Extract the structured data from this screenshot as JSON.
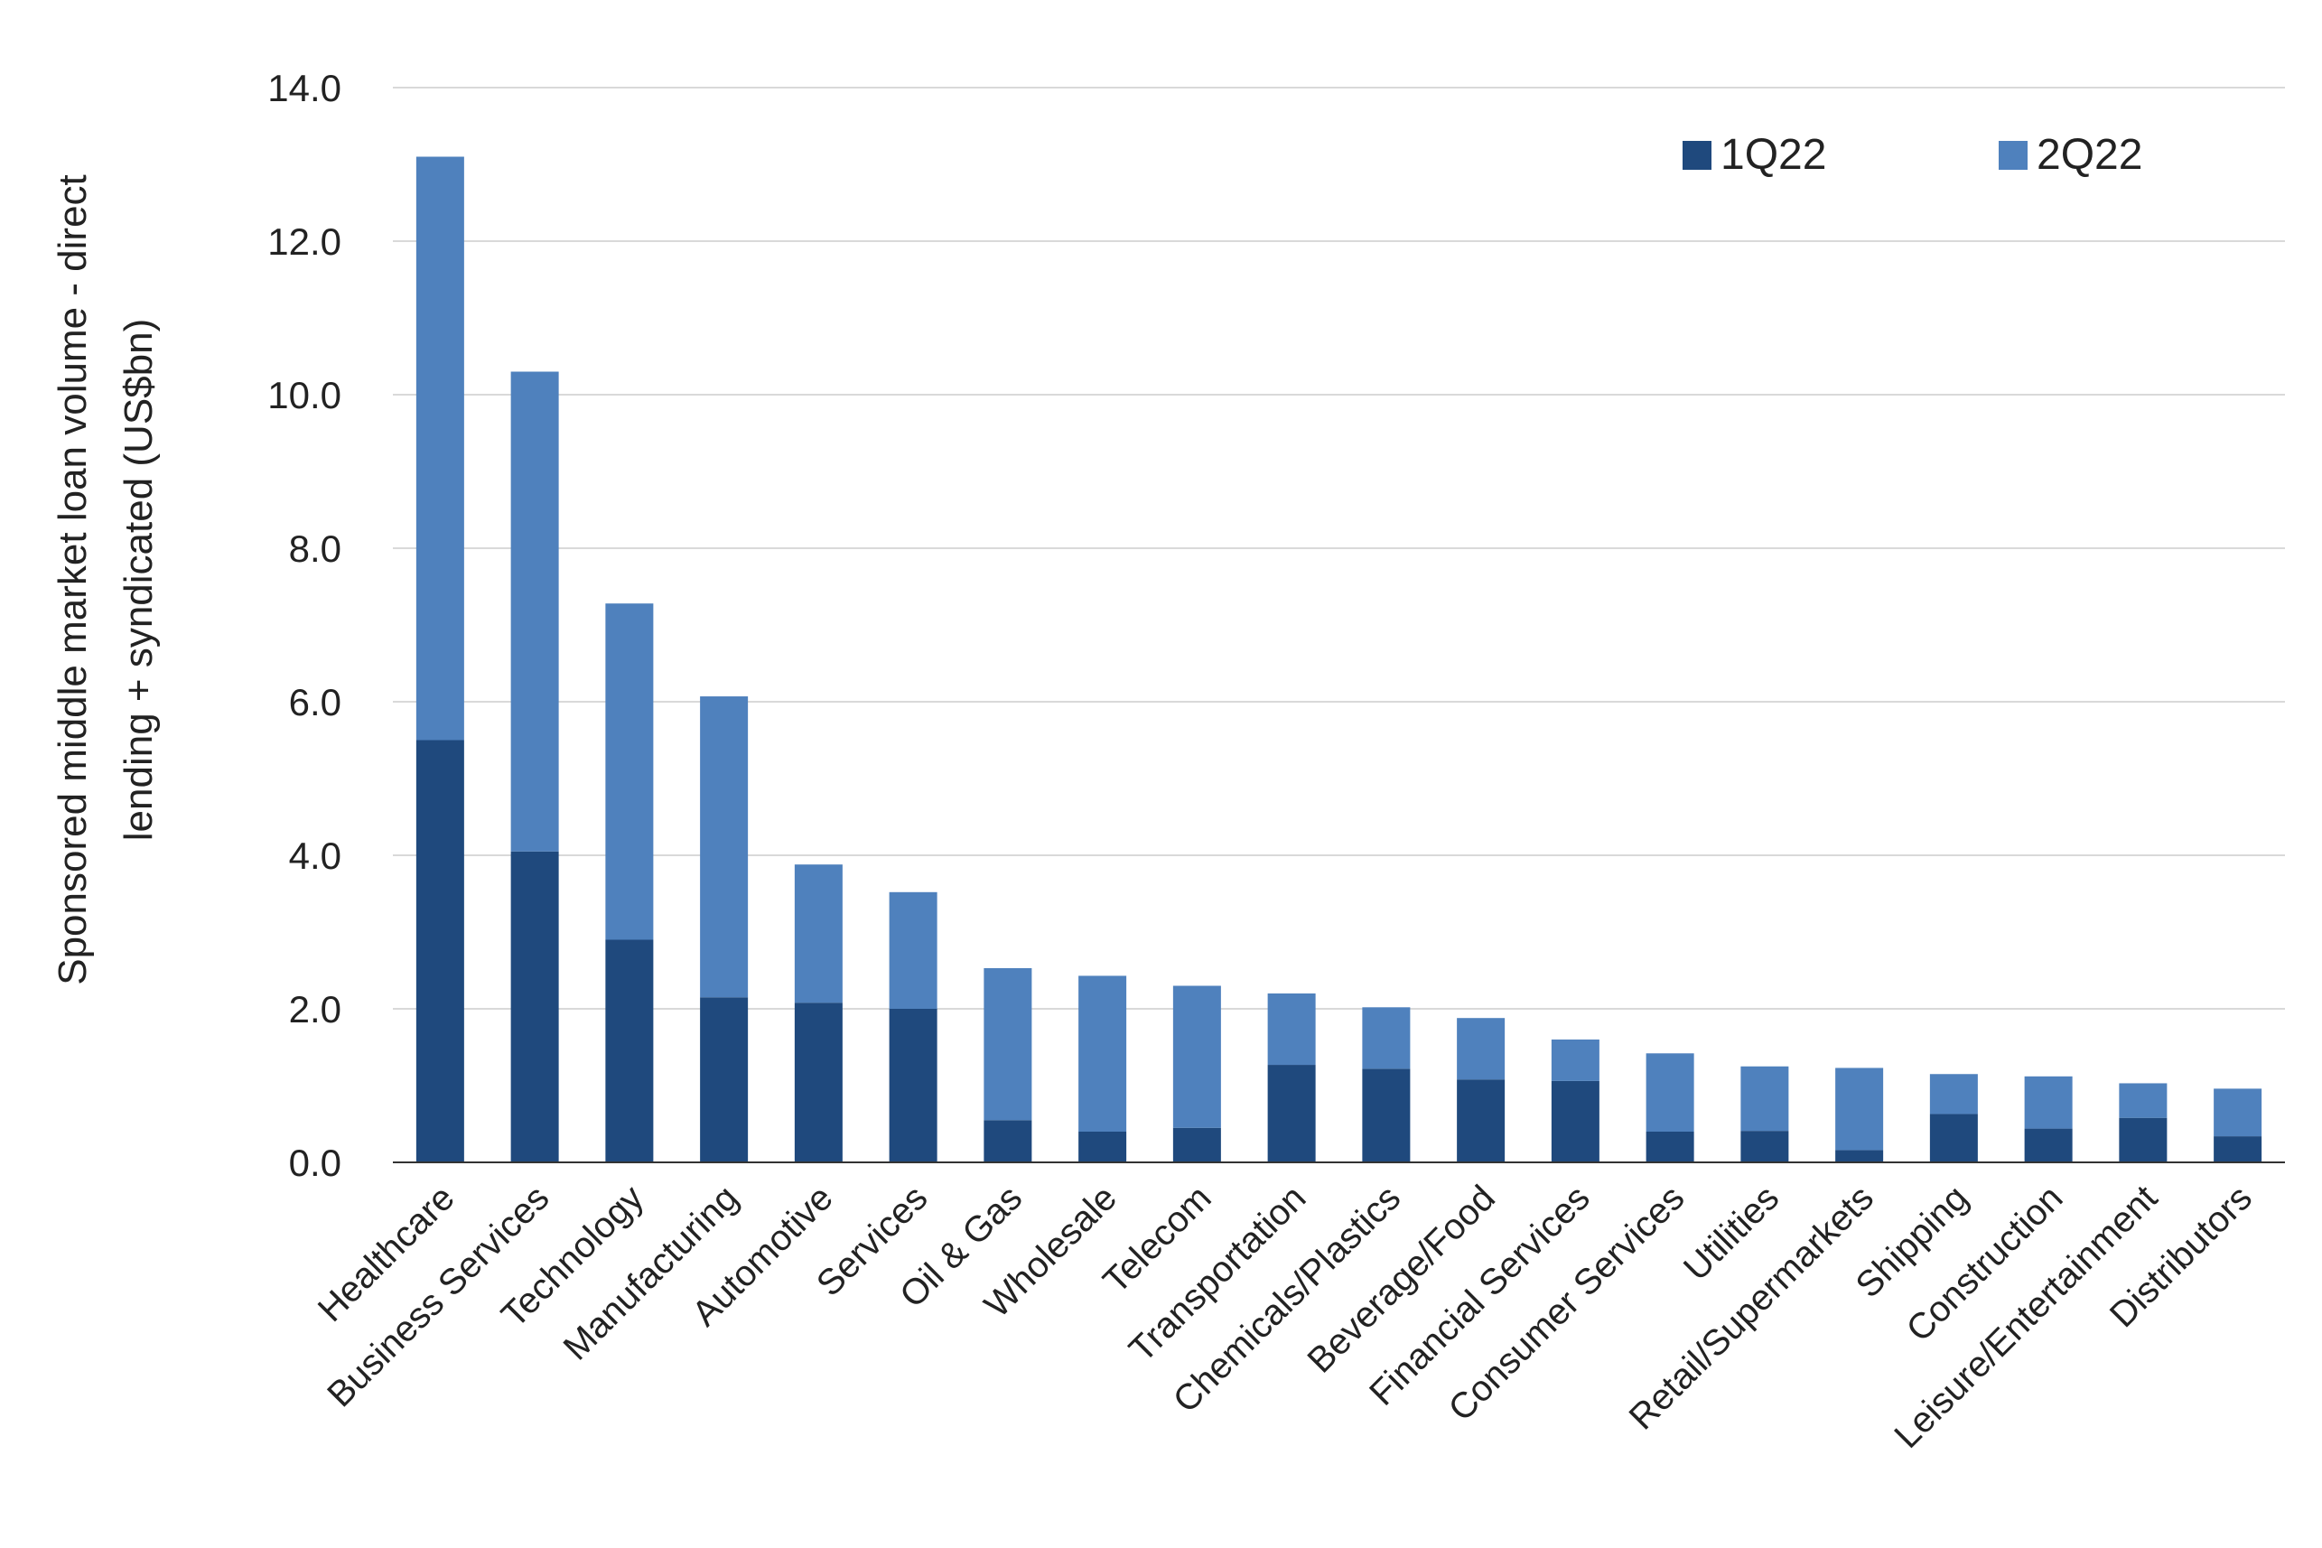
{
  "chart_data": {
    "type": "bar",
    "stacked": true,
    "title": "",
    "ylabel_lines": [
      "Sponsored middle market loan volume - direct",
      "lending + syndicated (US$bn)"
    ],
    "ylim": [
      0,
      14
    ],
    "yticks": [
      "0.0",
      "2.0",
      "4.0",
      "6.0",
      "8.0",
      "10.0",
      "12.0",
      "14.0"
    ],
    "ytick_values": [
      0,
      2,
      4,
      6,
      8,
      10,
      12,
      14
    ],
    "grid": true,
    "legend_position": "top-right",
    "categories": [
      "Healthcare",
      "Business Services",
      "Technology",
      "Manufacturing",
      "Automotive",
      "Services",
      "Oil & Gas",
      "Wholesale",
      "Telecom",
      "Transportation",
      "Chemicals/Plastics",
      "Beverage/Food",
      "Financial Services",
      "Consumer Services",
      "Utilities",
      "Retail/Supermarkets",
      "Shipping",
      "Construction",
      "Leisure/Entertainment",
      "Distributors"
    ],
    "series": [
      {
        "name": "1Q22",
        "color": "#1f497d",
        "values": [
          5.5,
          4.05,
          2.9,
          2.15,
          2.08,
          2.0,
          0.55,
          0.4,
          0.45,
          1.27,
          1.22,
          1.08,
          1.06,
          0.4,
          0.41,
          0.16,
          0.63,
          0.44,
          0.58,
          0.34
        ]
      },
      {
        "name": "2Q22",
        "color": "#4f81bd",
        "values": [
          7.6,
          6.25,
          4.38,
          3.92,
          1.8,
          1.52,
          1.98,
          2.03,
          1.85,
          0.93,
          0.8,
          0.8,
          0.54,
          1.02,
          0.84,
          1.07,
          0.52,
          0.68,
          0.45,
          0.62
        ]
      }
    ]
  }
}
